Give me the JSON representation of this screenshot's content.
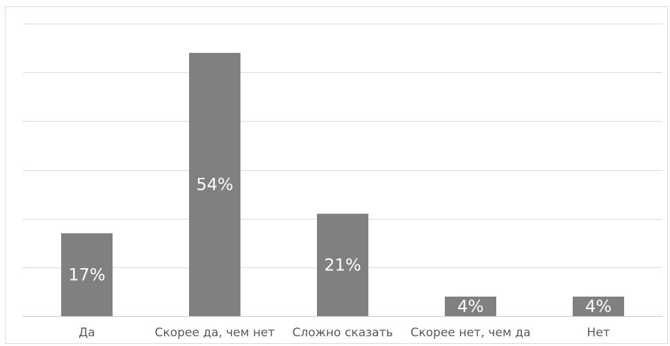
{
  "chart_data": {
    "type": "bar",
    "title": "",
    "xlabel": "",
    "ylabel": "",
    "categories": [
      "Да",
      "Скорее да, чем нет",
      "Сложно сказать",
      "Скорее нет, чем да",
      "Нет"
    ],
    "values": [
      17,
      54,
      21,
      4,
      4
    ],
    "data_labels": [
      "17%",
      "54%",
      "21%",
      "4%",
      "4%"
    ],
    "ylim": [
      0,
      60
    ],
    "grid": true,
    "legend": "none",
    "colors": {
      "bar": "#808080",
      "grid": "#d9d9d9",
      "label_inside": "#ffffff",
      "category_text": "#595959"
    }
  }
}
